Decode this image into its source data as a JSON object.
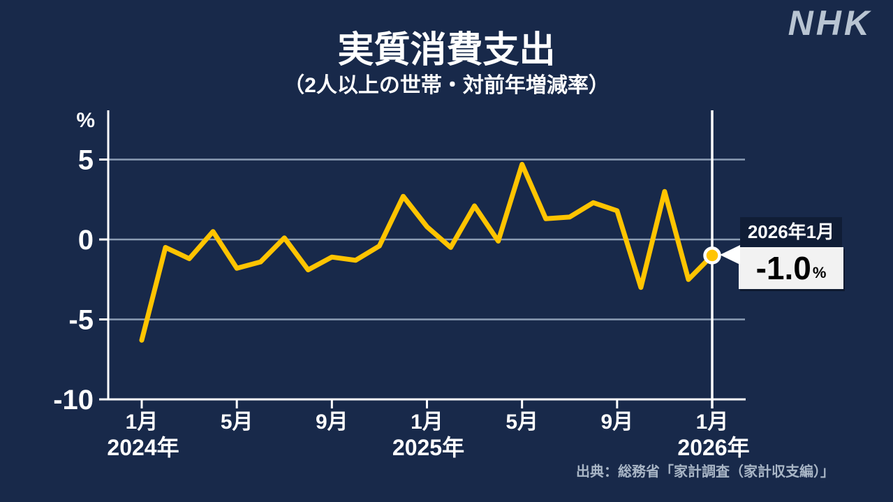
{
  "header": {
    "logo": "NHK",
    "title": "実質消費支出",
    "subtitle": "（2人以上の世帯・対前年増減率）"
  },
  "footer": {
    "source": "出典：総務省「家計調査（家計収支編）」"
  },
  "colors": {
    "background": "#18294A",
    "line": "#FFC400",
    "grid": "#8C9DB4",
    "axis": "#FFFFFF",
    "text": "#FFFFFF",
    "logo": "#B8C4D2",
    "source_text": "#A9B6C6",
    "callout_bg": "#101D36",
    "callout_text": "#FFFFFF",
    "value_box_bg": "#F2F2F2",
    "value_text": "#000000"
  },
  "chart_data": {
    "type": "line",
    "title": "実質消費支出",
    "subtitle": "（2人以上の世帯・対前年増減率）",
    "ylabel": "%",
    "ylim": [
      -10,
      8
    ],
    "grid": true,
    "yticks": [
      {
        "value": 5,
        "label": "5"
      },
      {
        "value": 0,
        "label": "0"
      },
      {
        "value": -5,
        "label": "-5"
      },
      {
        "value": -10,
        "label": "-10"
      }
    ],
    "xticks": [
      {
        "index": 0,
        "label": "1月"
      },
      {
        "index": 4,
        "label": "5月"
      },
      {
        "index": 8,
        "label": "9月"
      },
      {
        "index": 12,
        "label": "1月"
      },
      {
        "index": 16,
        "label": "5月"
      },
      {
        "index": 20,
        "label": "9月"
      },
      {
        "index": 24,
        "label": "1月"
      }
    ],
    "year_ticks": [
      {
        "index": 0,
        "label": "2024年"
      },
      {
        "index": 12,
        "label": "2025年"
      },
      {
        "index": 24,
        "label": "2026年"
      }
    ],
    "series": [
      {
        "name": "実質消費支出 対前年増減率",
        "x": [
          "2024年1月",
          "2024年2月",
          "2024年3月",
          "2024年4月",
          "2024年5月",
          "2024年6月",
          "2024年7月",
          "2024年8月",
          "2024年9月",
          "2024年10月",
          "2024年11月",
          "2024年12月",
          "2025年1月",
          "2025年2月",
          "2025年3月",
          "2025年4月",
          "2025年5月",
          "2025年6月",
          "2025年7月",
          "2025年8月",
          "2025年9月",
          "2025年10月",
          "2025年11月",
          "2025年12月",
          "2026年1月"
        ],
        "values": [
          -6.3,
          -0.5,
          -1.2,
          0.5,
          -1.8,
          -1.4,
          0.1,
          -1.9,
          -1.1,
          -1.3,
          -0.4,
          2.7,
          0.8,
          -0.5,
          2.1,
          -0.1,
          4.7,
          1.3,
          1.4,
          2.3,
          1.8,
          -3.0,
          3.0,
          -2.5,
          -1.0
        ]
      }
    ],
    "highlight": {
      "index": 24,
      "date_label": "2026年1月",
      "value_label": "-1.0",
      "unit": "%"
    }
  }
}
